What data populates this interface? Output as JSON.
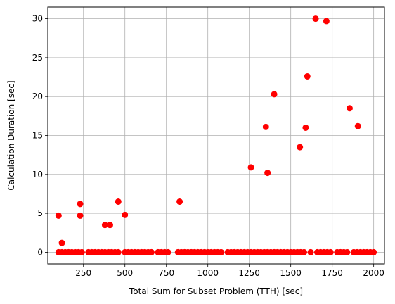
{
  "chart_data": {
    "type": "scatter",
    "xlabel": "Total Sum for Subset Problem (TTH) [sec]",
    "ylabel": "Calculation Duration [sec]",
    "xlim": [
      35,
      2065
    ],
    "ylim": [
      -1.5,
      31.5
    ],
    "x_ticks": [
      250,
      500,
      750,
      1000,
      1250,
      1500,
      1750,
      2000
    ],
    "y_ticks": [
      0,
      5,
      10,
      15,
      20,
      25,
      30
    ],
    "grid": true,
    "marker_color": "#ff0000",
    "series": [
      {
        "points": [
          [
            100,
            4.7
          ],
          [
            120,
            1.2
          ],
          [
            230,
            6.2
          ],
          [
            230,
            4.7
          ],
          [
            380,
            3.5
          ],
          [
            410,
            3.5
          ],
          [
            460,
            6.5
          ],
          [
            500,
            4.8
          ],
          [
            830,
            6.5
          ],
          [
            1260,
            10.9
          ],
          [
            1350,
            16.1
          ],
          [
            1360,
            10.2
          ],
          [
            1400,
            20.3
          ],
          [
            1555,
            13.5
          ],
          [
            1590,
            16.0
          ],
          [
            1600,
            22.6
          ],
          [
            1650,
            30.0
          ],
          [
            1715,
            29.7
          ],
          [
            1855,
            18.5
          ],
          [
            1905,
            16.2
          ],
          [
            100,
            0
          ],
          [
            120,
            0
          ],
          [
            140,
            0
          ],
          [
            160,
            0
          ],
          [
            180,
            0
          ],
          [
            200,
            0
          ],
          [
            220,
            0
          ],
          [
            240,
            0
          ],
          [
            280,
            0
          ],
          [
            300,
            0
          ],
          [
            320,
            0
          ],
          [
            340,
            0
          ],
          [
            360,
            0
          ],
          [
            380,
            0
          ],
          [
            400,
            0
          ],
          [
            420,
            0
          ],
          [
            440,
            0
          ],
          [
            460,
            0
          ],
          [
            500,
            0
          ],
          [
            520,
            0
          ],
          [
            540,
            0
          ],
          [
            560,
            0
          ],
          [
            580,
            0
          ],
          [
            600,
            0
          ],
          [
            620,
            0
          ],
          [
            640,
            0
          ],
          [
            660,
            0
          ],
          [
            700,
            0
          ],
          [
            720,
            0
          ],
          [
            740,
            0
          ],
          [
            760,
            0
          ],
          [
            820,
            0
          ],
          [
            840,
            0
          ],
          [
            860,
            0
          ],
          [
            880,
            0
          ],
          [
            900,
            0
          ],
          [
            920,
            0
          ],
          [
            940,
            0
          ],
          [
            960,
            0
          ],
          [
            980,
            0
          ],
          [
            1000,
            0
          ],
          [
            1020,
            0
          ],
          [
            1040,
            0
          ],
          [
            1060,
            0
          ],
          [
            1080,
            0
          ],
          [
            1120,
            0
          ],
          [
            1140,
            0
          ],
          [
            1160,
            0
          ],
          [
            1180,
            0
          ],
          [
            1200,
            0
          ],
          [
            1220,
            0
          ],
          [
            1240,
            0
          ],
          [
            1260,
            0
          ],
          [
            1280,
            0
          ],
          [
            1300,
            0
          ],
          [
            1320,
            0
          ],
          [
            1340,
            0
          ],
          [
            1360,
            0
          ],
          [
            1380,
            0
          ],
          [
            1400,
            0
          ],
          [
            1420,
            0
          ],
          [
            1440,
            0
          ],
          [
            1460,
            0
          ],
          [
            1480,
            0
          ],
          [
            1500,
            0
          ],
          [
            1520,
            0
          ],
          [
            1540,
            0
          ],
          [
            1560,
            0
          ],
          [
            1580,
            0
          ],
          [
            1620,
            0
          ],
          [
            1660,
            0
          ],
          [
            1680,
            0
          ],
          [
            1700,
            0
          ],
          [
            1720,
            0
          ],
          [
            1740,
            0
          ],
          [
            1780,
            0
          ],
          [
            1800,
            0
          ],
          [
            1820,
            0
          ],
          [
            1840,
            0
          ],
          [
            1880,
            0
          ],
          [
            1900,
            0
          ],
          [
            1920,
            0
          ],
          [
            1940,
            0
          ],
          [
            1960,
            0
          ],
          [
            1980,
            0
          ],
          [
            2000,
            0
          ]
        ]
      }
    ]
  }
}
